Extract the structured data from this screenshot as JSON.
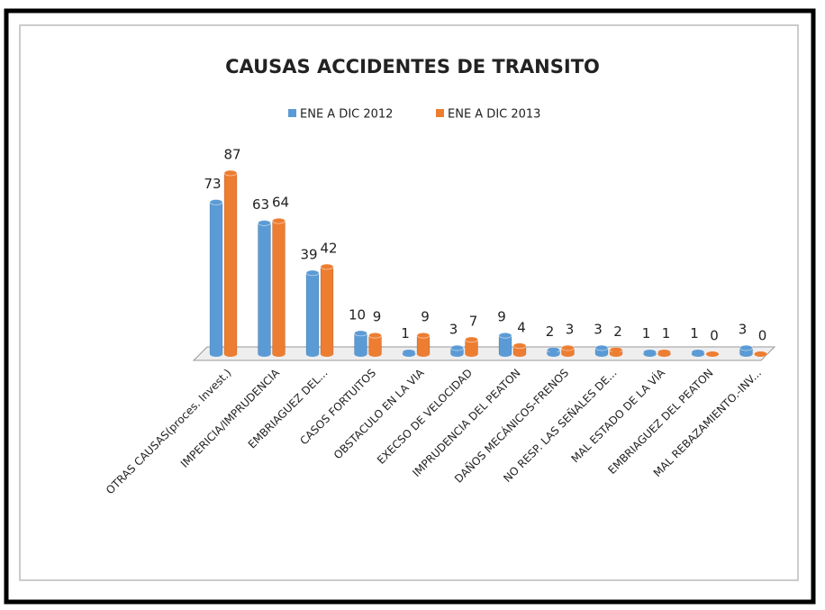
{
  "chart_data": {
    "type": "bar",
    "title": "CAUSAS  ACCIDENTES  DE  TRANSITO",
    "categories": [
      "OTRAS CAUSAS(proces. Invest.)",
      "IMPERICIA/IMPRUDENCIA",
      "EMBRIAGUEZ DEL...",
      "CASOS FORTUITOS",
      "OBSTACULO EN LA VIA",
      "EXECSO DE VELOCIDAD",
      "IMPRUDENCIA DEL PEATON",
      "DAÑOS MECÁNICOS-FRENOS",
      "NO RESP. LAS SEÑALES DE...",
      "MAL ESTADO DE LA VÍA",
      "EMBRIAGUEZ DEL PEATON",
      "MAL REBAZAMIENTO.-INV..."
    ],
    "series": [
      {
        "name": "ENE A DIC 2012",
        "color": "#5b9bd5",
        "values": [
          73,
          63,
          39,
          10,
          1,
          3,
          9,
          2,
          3,
          1,
          1,
          3
        ]
      },
      {
        "name": "ENE A DIC 2013",
        "color": "#ed7d31",
        "values": [
          87,
          64,
          42,
          9,
          9,
          7,
          4,
          3,
          2,
          1,
          0,
          0
        ]
      }
    ],
    "legend": "top"
  }
}
